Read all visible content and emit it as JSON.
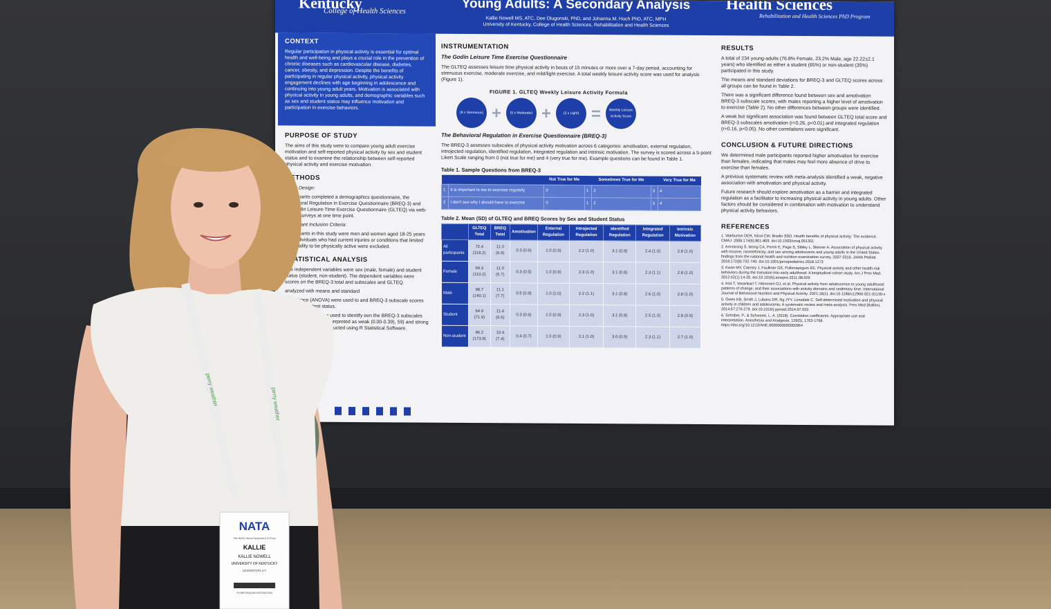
{
  "poster": {
    "logo_left": "Kentucky",
    "logo_left_sub": "College of Health Sciences",
    "title": "Young Adults: A Secondary Analysis",
    "authors": "Kallie Nowell MS, ATC, Dee Dlugonski, PhD, and Johanna M. Hoch PhD, ATC, MPH",
    "affiliation": "University of Kentucky, College of Health Sciences, Rehabilitation and Health Sciences",
    "logo_right": "Health Sciences",
    "logo_right_sub": "Rehabilitation and Health Sciences PhD Program",
    "context": {
      "heading": "CONTEXT",
      "body": "Regular participation in physical activity is essential for optimal health and well-being and plays a crucial role in the prevention of chronic diseases such as cardiovascular disease, diabetes, cancer, obesity, and depression. Despite the benefits of participating in regular physical activity, physical activity engagement declines with age beginning in adolescence and continuing into young adult years. Motivation is associated with physical activity in young adults, and demographic variables such as sex and student status may influence motivation and participation in exercise behaviors."
    },
    "purpose": {
      "heading": "PURPOSE OF STUDY",
      "body": "The aims of this study were to compare young adult exercise motivation and self-reported physical activity by sex and student status and to examine the relationship between self-reported physical activity and exercise motivation."
    },
    "methods": {
      "heading": "METHODS",
      "design_label": "Study Design:",
      "design": "Participants completed a demographics questionnaire, the Behavioral Regulation in Exercise Questionnaire (BREQ-3) and the Godin Leisure-Time Exercise Questionnaire (GLTEQ) via web-based surveys at one time point.",
      "inclusion_label": "Participant Inclusion Criteria:",
      "inclusion": "Participants in this study were men and women aged 18-25 years old. Individuals who had current injuries or conditions that limited their ability to be physically active were excluded."
    },
    "stats": {
      "heading": "STATISTICAL ANALYSIS",
      "p1": "The independent variables were sex (male, female) and student status (student, non-student). The dependent variables were scores on the BREQ-3 total and subscales and GLTEQ.",
      "p2": "analyzed with means and standard",
      "p3": "of variance (ANOVA) were used to and BREQ-3 subscale scores between student status.",
      "p4": "ion coefficients were used to identify een the BREQ-3 subscales and GLTEQ s were interpreted as weak (0.00-0.39), 59) and strong (0.60-1.0). Statistical ducted using R Statistical Software."
    },
    "instrumentation": {
      "heading": "INSTRUMENTATION",
      "gl_sub": "The Godin Leisure Time Exercise Questionnaire",
      "gl_body": "The GLTEQ assesses leisure time physical activity in bouts of 15 minutes or more over a 7-day period, accounting for strenuous exercise, moderate exercise, and mild/light exercise. A total weekly leisure activity score was used for analysis (Figure 1).",
      "fig_title": "FIGURE 1. GLTEQ Weekly Leisure Activity Formula",
      "circle1": "(9 x Strenuous)",
      "circle2": "(5 x Moderate)",
      "circle3": "(3 x Light)",
      "circle4": "Weekly Leisure Activity Score",
      "plus": "+",
      "equals": "=",
      "breq_sub": "The Behavioral Regulation in Exercise Questionnaire (BREQ-3)",
      "breq_body": "The BREQ-3 assesses subscales of physical activity motivation across 6 categories: amotivation, external regulation, introjected regulation, identified regulation, integrated regulation and intrinsic motivation. The survey is scored across a 5-point Likert Scale ranging from 0 (not true for me) and 4 (very true for me). Example questions can be found in Table 1."
    },
    "table1": {
      "caption": "Table 1. Sample Questions from BREQ-3",
      "headers": [
        "",
        "",
        "Not True for Me",
        "",
        "Sometimes True for Me",
        "",
        "Very True for Me"
      ],
      "rows": [
        [
          "1",
          "It is important to me to exercise regularly",
          "0",
          "1",
          "2",
          "3",
          "4"
        ],
        [
          "2",
          "I don't see why I should have to exercise",
          "0",
          "1",
          "2",
          "3",
          "4"
        ]
      ]
    },
    "table2": {
      "caption": "Table 2. Mean (SD) of GLTEQ and BREQ Scores by Sex and Student Status",
      "headers": [
        "",
        "GLTEQ Total",
        "BREQ Total",
        "Amotivation",
        "External Regulation",
        "Introjected Regulation",
        "Identified Regulation",
        "Integrated Regulation",
        "Intrinsic Motivation"
      ],
      "rows": [
        [
          "All participants",
          "72.4 (118.2)",
          "11.0 (6.9)",
          "0.3 (0.6)",
          "1.0 (0.9)",
          "2.2 (1.0)",
          "3.1 (0.8)",
          "2.4 (1.0)",
          "2.8 (1.0)"
        ],
        [
          "Female",
          "64.3 (110.2)",
          "11.0 (6.7)",
          "0.3 (0.5)",
          "1.0 (0.9)",
          "2.3 (1.0)",
          "3.1 (0.8)",
          "2.3 (1.1)",
          "2.8 (1.0)"
        ],
        [
          "Male",
          "98.7 (140.1)",
          "11.1 (7.7)",
          "0.5 (0.9)",
          "1.0 (1.0)",
          "2.2 (1.1)",
          "3.1 (0.8)",
          "2.6 (1.0)",
          "2.8 (1.0)"
        ],
        [
          "Student",
          "64.9 (71.9)",
          "11.4 (6.6)",
          "0.3 (0.6)",
          "1.0 (0.9)",
          "2.3 (1.0)",
          "3.1 (0.8)",
          "2.5 (1.0)",
          "2.8 (0.9)"
        ],
        [
          "Non-student",
          "86.2 (173.8)",
          "10.4 (7.4)",
          "0.4 (0.7)",
          "1.0 (0.9)",
          "2.1 (1.0)",
          "3.0 (0.9)",
          "2.3 (1.1)",
          "2.7 (1.0)"
        ]
      ]
    },
    "results": {
      "heading": "RESULTS",
      "p1": "A total of 234 young-adults (76.8% Female, 23.2% Male, age 22.22±2.1 years) who identified as either a student (65%) or non-student (35%) participated in this study.",
      "p2": "The means and standard deviations for BREQ-3 and GLTEQ scores across all groups can be found in Table 2.",
      "p3": "There was a significant difference found between sex and amotivation BREQ-3 subscale scores, with males reporting a higher level of amotivation to exercise (Table 2). No other differences between groups were identified.",
      "p4": "A weak but significant association was found between GLTEQ total score and BREQ-3 subscales amotivation (r=0.26, p<0.01) and integrated regulation (r=0.16, p<0.05). No other correlations were significant."
    },
    "conclusion": {
      "heading": "CONCLUSION & FUTURE DIRECTIONS",
      "p1": "We determined male participants reported higher amotivation for exercise than females, indicating that males may feel more absence of drive to exercise than females.",
      "p2": "A previous systematic review with meta-analysis identified a weak, negative association with amotivation and physical activity.",
      "p3": "Future research should explore amotivation as a barrier and integrated regulation as a facilitator to increasing physical activity in young adults. Other factors should be considered in combination with motivation to understand physical activity behaviors."
    },
    "references": {
      "heading": "REFERENCES",
      "items": [
        "1. Warburton DER, Nicol CW, Bredin SSD. Health benefits of physical activity: The evidence. CMAJ. 2006;174(6):801-809. doi:10.1503/cmaj.051351",
        "2. Armstrong S, Wong CA, Perrin E, Page S, Sibley L, Skinner A. Association of physical activity with income, race/ethnicity, and sex among adolescents and young adults in the United States findings from the national health and nutrition examination survey, 2007-2016. JAMA Pediatr. 2018;172(8):732-740. doi:10.1001/jamapediatrics.2018.1273",
        "3. Kwan MY, Cairney J, Faulkner GE, Pullenayegum EE. Physical activity and other health-risk behaviors during the transition into early adulthood: A longitudinal cohort study. Am J Prev Med. 2012;42(1):14-20. doi:10.1016/j.amepre.2011.08.026",
        "4. Aira T, Vasankari T, Heinonen OJ, et al. Physical activity from adolescence to young adulthood: patterns of change, and their associations with activity domains and sedentary time. International Journal of Behavioral Nutrition and Physical Activity. 2021;18(1). doi:10.1186/s12966-021-01130-x",
        "5. Owen KB, Smith J, Lubans DR, Ng JYY, Lonsdale C. Self-determined motivation and physical activity in children and adolescents: A systematic review and meta-analysis. Prev Med (Baltim). 2014;67:270-279. doi:10.1016/j.ypmed.2014.07.033",
        "6. Schober, P., & Schwarte, L. A. (2018). Correlation coefficients: Appropriate use and interpretation. Anesthesia and Analgesia, 126(5), 1763-1768. https://doi.org/10.1213/ANE.0000000000002864"
      ]
    }
  },
  "badge": {
    "logo": "NATA",
    "tagline": "76th NATA Clinical Symposia & AT Expo",
    "first_name": "KALLIE",
    "full_name": "KALLIE NOWELL",
    "org": "UNIVERSITY OF KENTUCKY",
    "city": "LEXINGTON, KY",
    "footer": "SYMPOSIA REGISTRATION"
  },
  "lanyard_text": "perry weather"
}
